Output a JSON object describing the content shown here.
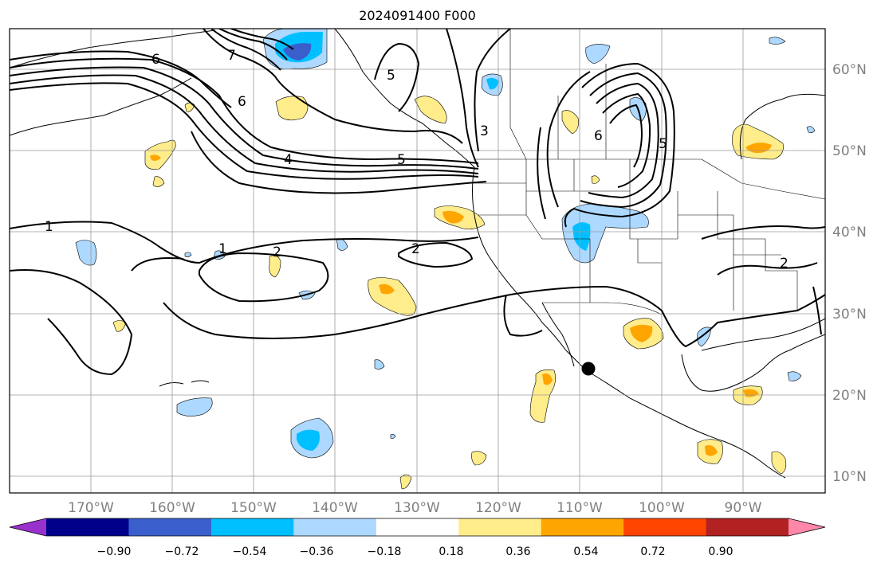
{
  "title": "2024091400 F000",
  "map": {
    "lon_labels": [
      "170°W",
      "160°W",
      "150°W",
      "140°W",
      "130°W",
      "120°W",
      "110°W",
      "100°W",
      "90°W"
    ],
    "lat_labels": [
      "60°N",
      "50°N",
      "40°N",
      "30°N",
      "20°N",
      "10°N"
    ],
    "contour_labels": [
      "6",
      "7",
      "5",
      "6",
      "3",
      "6",
      "4",
      "5",
      "1",
      "1",
      "2",
      "2",
      "2",
      "5"
    ],
    "marker": "station-marker"
  },
  "colorbar": {
    "colors": [
      "#9932CC",
      "#00008B",
      "#3A5FCD",
      "#00BFFF",
      "#ADD8FF",
      "#FFFFFF",
      "#FFEC8B",
      "#FFA500",
      "#FF4500",
      "#B22222",
      "#FF88AA"
    ],
    "ticks": [
      "−0.90",
      "−0.72",
      "−0.54",
      "−0.36",
      "−0.18",
      "0.18",
      "0.36",
      "0.54",
      "0.72",
      "0.90"
    ]
  }
}
